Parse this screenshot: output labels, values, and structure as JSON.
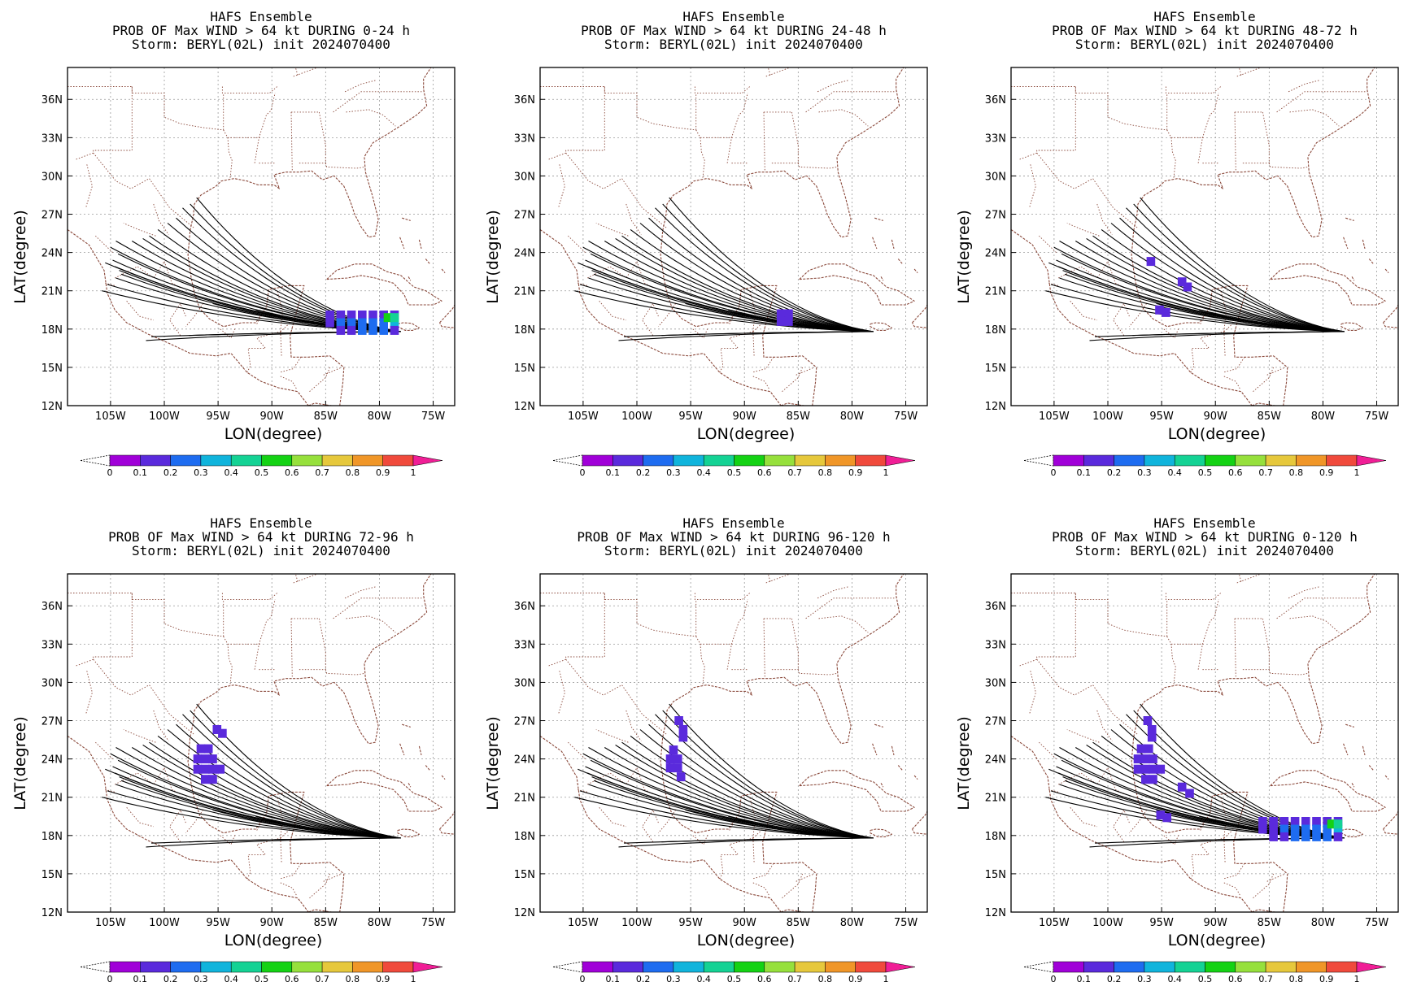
{
  "page": {
    "colors": {
      "coast": "#8b4a3c",
      "track": "#000000",
      "grid": "#9a9a9a",
      "frame": "#000000"
    },
    "panels": [
      {
        "line1": "HAFS Ensemble",
        "line2": "PROB OF Max WIND > 64 kt DURING  0-24 h",
        "line3": "Storm: BERYL(02L) init 2024070400",
        "prob_regions": [
          {
            "cells": [
              [
                -85,
                19.1,
                1
              ],
              [
                -84,
                19.1,
                1
              ],
              [
                -83,
                19.1,
                1
              ],
              [
                -82,
                19.1,
                1
              ],
              [
                -81,
                19.1,
                1
              ],
              [
                -80,
                19.1,
                1
              ],
              [
                -79,
                19.1,
                1
              ],
              [
                -85,
                18.5,
                1
              ],
              [
                -84,
                18.5,
                2
              ],
              [
                -83,
                18.5,
                2
              ],
              [
                -82,
                18.5,
                2
              ],
              [
                -81,
                18.5,
                2
              ],
              [
                -80,
                18.5,
                2
              ],
              [
                -79,
                18.5,
                3
              ],
              [
                -84,
                17.9,
                1
              ],
              [
                -83,
                17.9,
                1
              ],
              [
                -82,
                17.9,
                2
              ],
              [
                -81,
                17.9,
                2
              ],
              [
                -80,
                17.9,
                2
              ],
              [
                -79,
                17.9,
                1
              ]
            ]
          },
          {
            "cells": [
              [
                -79.6,
                18.9,
                5
              ],
              [
                -79,
                18.9,
                4
              ]
            ]
          }
        ]
      },
      {
        "line1": "HAFS Ensemble",
        "line2": "PROB OF Max WIND > 64 kt DURING 24-48 h",
        "line3": "Storm: BERYL(02L) init 2024070400",
        "prob_regions": [
          {
            "cells": [
              [
                -87,
                19.2,
                1
              ],
              [
                -86.3,
                19.2,
                1
              ],
              [
                -87,
                18.6,
                1
              ],
              [
                -86.3,
                18.6,
                1
              ]
            ]
          }
        ]
      },
      {
        "line1": "HAFS Ensemble",
        "line2": "PROB OF Max WIND > 64 kt DURING 48-72 h",
        "line3": "Storm: BERYL(02L) init 2024070400",
        "prob_regions": [
          {
            "cells": [
              [
                -96.4,
                23.3,
                1
              ]
            ]
          },
          {
            "cells": [
              [
                -93.5,
                21.7,
                1
              ],
              [
                -93,
                21.3,
                1
              ]
            ]
          },
          {
            "cells": [
              [
                -95.6,
                19.5,
                1
              ],
              [
                -95,
                19.3,
                1
              ]
            ]
          }
        ]
      },
      {
        "line1": "HAFS Ensemble",
        "line2": "PROB OF Max WIND > 64 kt DURING 72-96 h",
        "line3": "Storm: BERYL(02L) init 2024070400",
        "prob_regions": [
          {
            "cells": [
              [
                -95.5,
                26.3,
                1
              ],
              [
                -95,
                26.0,
                1
              ]
            ]
          },
          {
            "cells": [
              [
                -97,
                24.8,
                1
              ],
              [
                -96.3,
                24.8,
                1
              ],
              [
                -97.3,
                24.0,
                1
              ],
              [
                -96.6,
                24.0,
                1
              ],
              [
                -95.9,
                24.0,
                1
              ],
              [
                -97.3,
                23.2,
                1
              ],
              [
                -96.6,
                23.2,
                1
              ],
              [
                -95.9,
                23.2,
                1
              ],
              [
                -95.2,
                23.2,
                1
              ],
              [
                -96.6,
                22.4,
                1
              ],
              [
                -95.9,
                22.4,
                1
              ]
            ]
          }
        ]
      },
      {
        "line1": "HAFS Ensemble",
        "line2": "PROB OF Max WIND > 64 kt DURING 96-120 h",
        "line3": "Storm: BERYL(02L) init 2024070400",
        "prob_regions": [
          {
            "cells": [
              [
                -96.5,
                27.0,
                1
              ],
              [
                -96.1,
                26.3,
                1
              ],
              [
                -96.1,
                25.7,
                1
              ]
            ]
          },
          {
            "cells": [
              [
                -97,
                24.7,
                1
              ],
              [
                -97.3,
                24.0,
                1
              ],
              [
                -96.6,
                24.0,
                1
              ],
              [
                -97.3,
                23.3,
                1
              ],
              [
                -96.6,
                23.3,
                1
              ],
              [
                -96.3,
                22.6,
                1
              ]
            ]
          }
        ]
      },
      {
        "line1": "HAFS Ensemble",
        "line2": "PROB OF Max WIND > 64 kt DURING 0-120 h",
        "line3": "Storm: BERYL(02L) init 2024070400",
        "prob_regions": [
          {
            "cells": [
              [
                -96.7,
                27.0,
                1
              ],
              [
                -96.3,
                26.3,
                1
              ],
              [
                -96.3,
                25.7,
                1
              ]
            ]
          },
          {
            "cells": [
              [
                -97.3,
                24.8,
                1
              ],
              [
                -96.6,
                24.8,
                1
              ],
              [
                -97.6,
                24.0,
                1
              ],
              [
                -96.9,
                24.0,
                1
              ],
              [
                -96.2,
                24.0,
                1
              ],
              [
                -97.6,
                23.2,
                1
              ],
              [
                -96.9,
                23.2,
                1
              ],
              [
                -96.2,
                23.2,
                1
              ],
              [
                -95.5,
                23.2,
                1
              ],
              [
                -96.9,
                22.4,
                1
              ],
              [
                -96.2,
                22.4,
                1
              ],
              [
                -93.5,
                21.8,
                1
              ],
              [
                -92.8,
                21.3,
                1
              ]
            ]
          },
          {
            "cells": [
              [
                -95.5,
                19.6,
                1
              ],
              [
                -94.9,
                19.4,
                1
              ]
            ]
          },
          {
            "cells": [
              [
                -86,
                19.1,
                1
              ],
              [
                -85,
                19.1,
                1
              ],
              [
                -84,
                19.1,
                1
              ],
              [
                -83,
                19.1,
                1
              ],
              [
                -82,
                19.1,
                1
              ],
              [
                -81,
                19.1,
                1
              ],
              [
                -80,
                19.1,
                1
              ],
              [
                -79,
                19.1,
                1
              ],
              [
                -86,
                18.5,
                1
              ],
              [
                -85,
                18.5,
                1
              ],
              [
                -84,
                18.5,
                2
              ],
              [
                -83,
                18.5,
                2
              ],
              [
                -82,
                18.5,
                2
              ],
              [
                -81,
                18.5,
                2
              ],
              [
                -80,
                18.5,
                2
              ],
              [
                -79,
                18.5,
                3
              ],
              [
                -85,
                17.9,
                1
              ],
              [
                -84,
                17.9,
                1
              ],
              [
                -83,
                17.9,
                2
              ],
              [
                -82,
                17.9,
                2
              ],
              [
                -81,
                17.9,
                2
              ],
              [
                -80,
                17.9,
                2
              ],
              [
                -79,
                17.9,
                1
              ]
            ]
          },
          {
            "cells": [
              [
                -79.6,
                18.9,
                5
              ],
              [
                -79,
                18.9,
                4
              ]
            ]
          }
        ]
      }
    ],
    "axes": {
      "x_label": "LON(degree)",
      "y_label": "LAT(degree)",
      "lon_ticks": [
        {
          "value": -105,
          "label": "105W"
        },
        {
          "value": -100,
          "label": "100W"
        },
        {
          "value": -95,
          "label": "95W"
        },
        {
          "value": -90,
          "label": "90W"
        },
        {
          "value": -85,
          "label": "85W"
        },
        {
          "value": -80,
          "label": "80W"
        },
        {
          "value": -75,
          "label": "75W"
        }
      ],
      "lat_ticks": [
        {
          "value": 12,
          "label": "12N"
        },
        {
          "value": 15,
          "label": "15N"
        },
        {
          "value": 18,
          "label": "18N"
        },
        {
          "value": 21,
          "label": "21N"
        },
        {
          "value": 24,
          "label": "24N"
        },
        {
          "value": 27,
          "label": "27N"
        },
        {
          "value": 30,
          "label": "30N"
        },
        {
          "value": 33,
          "label": "33N"
        },
        {
          "value": 36,
          "label": "36N"
        }
      ],
      "lon_range": [
        -109,
        -73
      ],
      "lat_range": [
        12,
        38.5
      ],
      "grid": true
    },
    "colorbar": {
      "labels": [
        "0",
        "0.1",
        "0.2",
        "0.3",
        "0.4",
        "0.5",
        "0.6",
        "0.7",
        "0.8",
        "0.9",
        "1"
      ],
      "colors": [
        "#a000d8",
        "#5a2adc",
        "#1e6cf0",
        "#10b4dc",
        "#14d294",
        "#14d214",
        "#96e03c",
        "#e6c83c",
        "#f09628",
        "#f04a3c",
        "#f01e96"
      ]
    },
    "tracks": {
      "start": [
        -78,
        17.8
      ],
      "ends": [
        [
          -97,
          28.3
        ],
        [
          -97.6,
          27.8
        ],
        [
          -98.3,
          27.5
        ],
        [
          -98.9,
          26.7
        ],
        [
          -99.7,
          26.3
        ],
        [
          -100.6,
          25.8
        ],
        [
          -101.4,
          25.3
        ],
        [
          -102,
          25.1
        ],
        [
          -103,
          24.9
        ],
        [
          -104.5,
          24.9
        ],
        [
          -105,
          24.4
        ],
        [
          -104.3,
          23.9
        ],
        [
          -104.8,
          23.4
        ],
        [
          -105.5,
          23.2
        ],
        [
          -104.6,
          22.9
        ],
        [
          -104.2,
          22.6
        ],
        [
          -104,
          22.3
        ],
        [
          -104.5,
          22.0
        ],
        [
          -105.3,
          21.5
        ],
        [
          -105.8,
          21.0
        ],
        [
          -101.7,
          17.1
        ],
        [
          -101.2,
          17.4
        ],
        [
          -97.7,
          17.5
        ],
        [
          -95.5,
          20.0
        ],
        [
          -91.5,
          19.5
        ]
      ]
    }
  }
}
